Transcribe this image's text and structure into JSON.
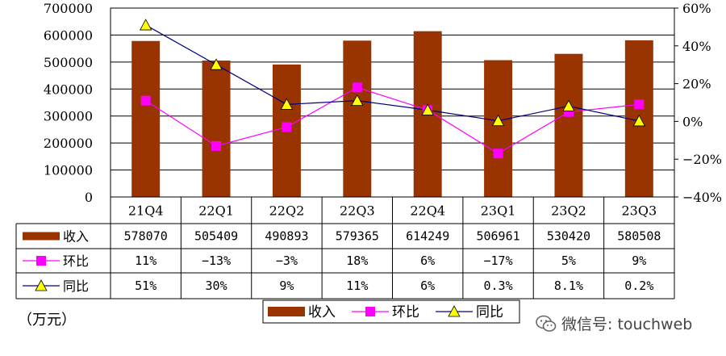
{
  "unit_label": "（万元）",
  "watermark": {
    "text": "微信号: touchweb",
    "icon": "wechat-icon"
  },
  "chart_data": {
    "type": "bar+line",
    "categories": [
      "21Q4",
      "22Q1",
      "22Q2",
      "22Q3",
      "22Q4",
      "23Q1",
      "23Q2",
      "23Q3"
    ],
    "y_left": {
      "min": 0,
      "max": 700000,
      "ticks": [
        "0",
        "100000",
        "200000",
        "300000",
        "400000",
        "500000",
        "600000",
        "700000"
      ]
    },
    "y_right": {
      "min": -40,
      "max": 60,
      "ticks": [
        "-40%",
        "-20%",
        "0%",
        "20%",
        "40%",
        "60%"
      ]
    },
    "grid": true,
    "legend_position": "bottom",
    "series": [
      {
        "name": "收入",
        "type": "bar",
        "axis": "left",
        "color": "#993300",
        "values": [
          578070,
          505409,
          490893,
          579365,
          614249,
          506961,
          530420,
          580508
        ],
        "labels": [
          "578070",
          "505409",
          "490893",
          "579365",
          "614249",
          "506961",
          "530420",
          "580508"
        ]
      },
      {
        "name": "环比",
        "type": "line",
        "axis": "right",
        "color": "#ff00ff",
        "marker": "square",
        "values": [
          11,
          -13,
          -3,
          18,
          6,
          -17,
          5,
          9
        ],
        "labels": [
          "11%",
          "-13%",
          "-3%",
          "18%",
          "6%",
          "-17%",
          "5%",
          "9%"
        ]
      },
      {
        "name": "同比",
        "type": "line",
        "axis": "right",
        "color": "#000080",
        "marker": "triangle",
        "marker_fill": "#ffff00",
        "values": [
          51,
          30,
          9,
          11,
          6,
          0.3,
          8.1,
          0.2
        ],
        "labels": [
          "51%",
          "30%",
          "9%",
          "11%",
          "6%",
          "0.3%",
          "8.1%",
          "0.2%"
        ]
      }
    ]
  }
}
